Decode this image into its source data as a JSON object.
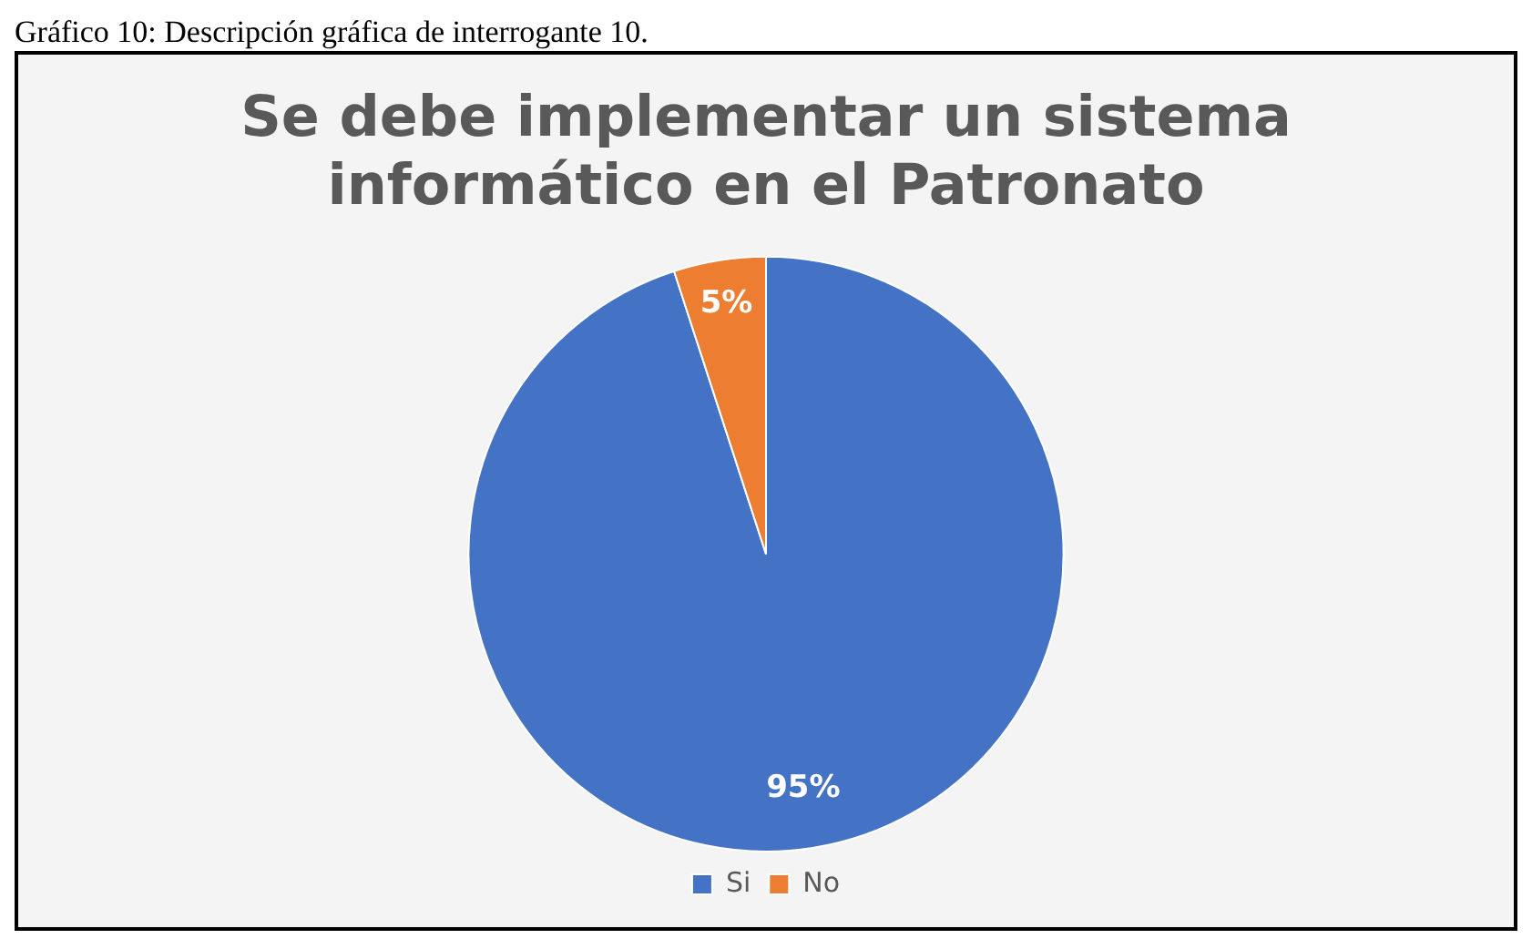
{
  "chart_data": {
    "type": "pie",
    "title": "Se debe implementar un sistema informático en el Patronato",
    "categories": [
      "Si",
      "No"
    ],
    "values": [
      95,
      5
    ],
    "colors": [
      "#4472c4",
      "#ed7d31"
    ],
    "value_labels": [
      "95%",
      "5%"
    ],
    "legend": "bottom",
    "annotations": [
      "Gráfico 10: Descripción gráfica de interrogante 10."
    ]
  }
}
